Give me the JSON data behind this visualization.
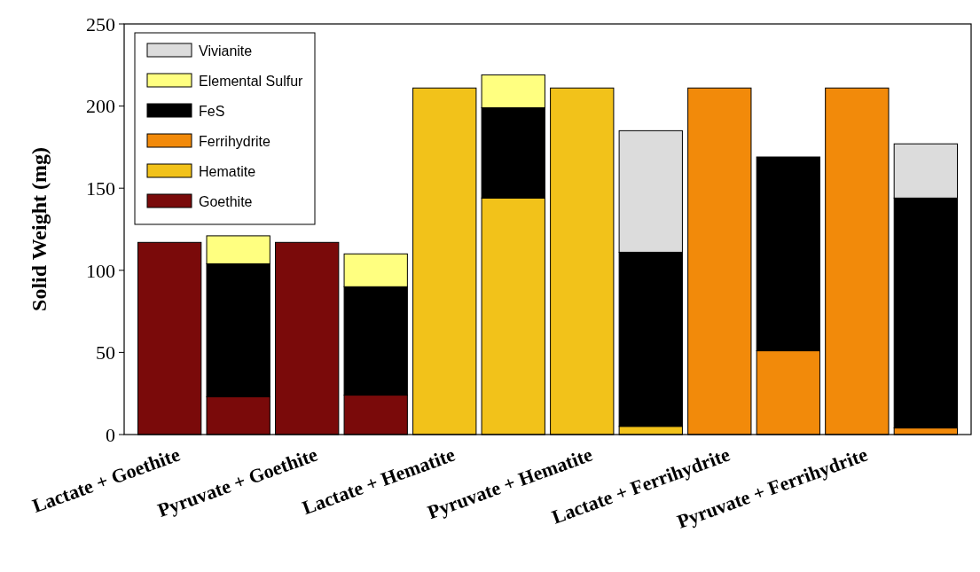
{
  "chart_data": {
    "type": "bar",
    "stacked": true,
    "ylabel": "Solid Weight (mg)",
    "ylim": [
      0,
      250
    ],
    "yticks": [
      0,
      50,
      100,
      150,
      200,
      250
    ],
    "legend": "top left",
    "grid": false,
    "categories": [
      "Lactate + Goethite",
      null,
      "Pyruvate + Goethite",
      null,
      "Lactate + Hematite",
      null,
      "Pyruvate + Hematite",
      null,
      "Lactate + Ferrihydrite",
      null,
      "Pyruvate + Ferrihydrite",
      null
    ],
    "series": [
      {
        "name": "Goethite",
        "color": "#7a0a0a",
        "values": [
          117,
          23,
          117,
          24,
          null,
          null,
          null,
          null,
          null,
          null,
          null,
          null
        ]
      },
      {
        "name": "Hematite",
        "color": "#f2c21a",
        "values": [
          null,
          null,
          null,
          null,
          211,
          144,
          211,
          5,
          null,
          null,
          null,
          null
        ]
      },
      {
        "name": "Ferrihydrite",
        "color": "#f28a0a",
        "values": [
          null,
          null,
          null,
          null,
          null,
          null,
          null,
          null,
          211,
          51,
          211,
          4
        ]
      },
      {
        "name": "FeS",
        "color": "#000000",
        "values": [
          null,
          81,
          null,
          66,
          null,
          55,
          null,
          106,
          null,
          118,
          null,
          140
        ]
      },
      {
        "name": "Elemental Sulfur",
        "color": "#ffff80",
        "values": [
          null,
          17,
          null,
          20,
          null,
          20,
          null,
          null,
          null,
          null,
          null,
          null
        ]
      },
      {
        "name": "Vivianite",
        "color": "#dcdcdc",
        "values": [
          null,
          null,
          null,
          null,
          null,
          null,
          null,
          74,
          null,
          null,
          null,
          33
        ]
      }
    ]
  }
}
